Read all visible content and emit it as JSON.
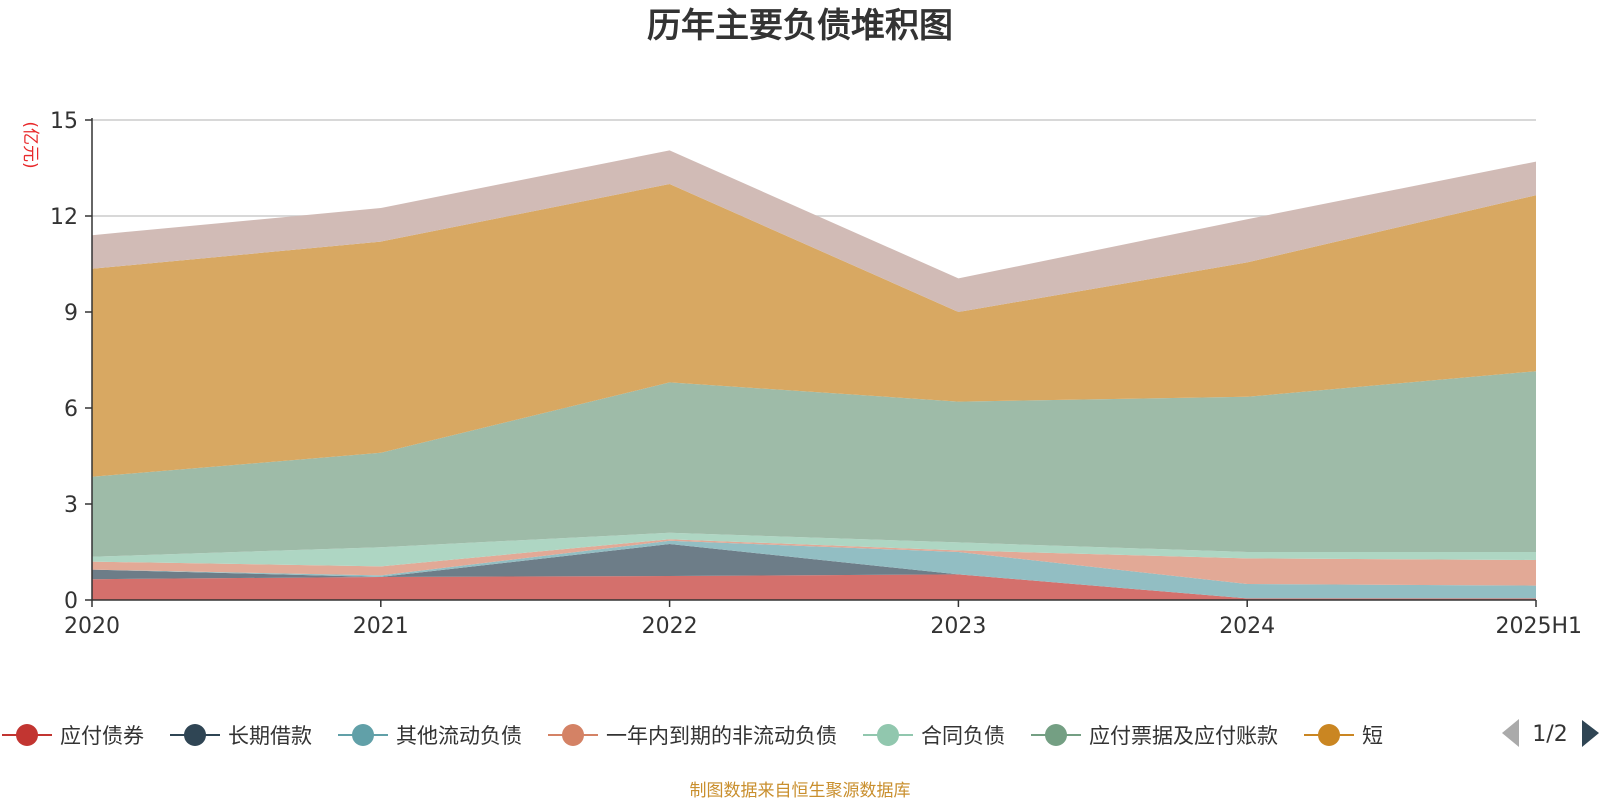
{
  "chart_data": {
    "type": "area",
    "stacked": true,
    "title": "历年主要负债堆积图",
    "unit_label": "(亿元)",
    "categories": [
      "2020",
      "2021",
      "2022",
      "2023",
      "2024",
      "2025H1"
    ],
    "ylim": [
      0,
      15
    ],
    "yticks": [
      0,
      3,
      6,
      9,
      12,
      15
    ],
    "grid": true,
    "legend_position": "bottom",
    "series": [
      {
        "name": "应付债券",
        "legend_color": "#c23531",
        "fill": "#d4706c",
        "values": [
          0.65,
          0.72,
          0.75,
          0.8,
          0.05,
          0.05
        ]
      },
      {
        "name": "长期借款",
        "legend_color": "#2f4554",
        "fill": "#6d7d88",
        "values": [
          0.3,
          0.0,
          1.0,
          0.0,
          0.0,
          0.0
        ]
      },
      {
        "name": "其他流动负债",
        "legend_color": "#61a0a8",
        "fill": "#92bec3",
        "values": [
          0.0,
          0.05,
          0.1,
          0.7,
          0.45,
          0.4
        ]
      },
      {
        "name": "一年内到期的非流动负债",
        "legend_color": "#d48265",
        "fill": "#e2a996",
        "values": [
          0.25,
          0.28,
          0.05,
          0.05,
          0.8,
          0.8
        ]
      },
      {
        "name": "合同负债",
        "legend_color": "#91c7ae",
        "fill": "#aed6c3",
        "values": [
          0.15,
          0.6,
          0.2,
          0.25,
          0.2,
          0.25
        ]
      },
      {
        "name": "应付票据及应付账款",
        "legend_color": "#749f83",
        "fill": "#9ebba8",
        "values": [
          2.5,
          2.95,
          4.7,
          4.4,
          4.85,
          5.65
        ]
      },
      {
        "name": "短",
        "legend_color": "#ca8622",
        "fill": "#d8a862",
        "values": [
          6.5,
          6.6,
          6.2,
          2.8,
          4.2,
          5.5
        ]
      },
      {
        "name": "",
        "legend_color": "#bda29a",
        "fill": "#d1bbb6",
        "values": [
          1.05,
          1.05,
          1.05,
          1.05,
          1.35,
          1.05
        ]
      }
    ]
  },
  "legend": {
    "page_indicator": "1/2"
  },
  "footer": {
    "source_text": "制图数据来自恒生聚源数据库"
  }
}
